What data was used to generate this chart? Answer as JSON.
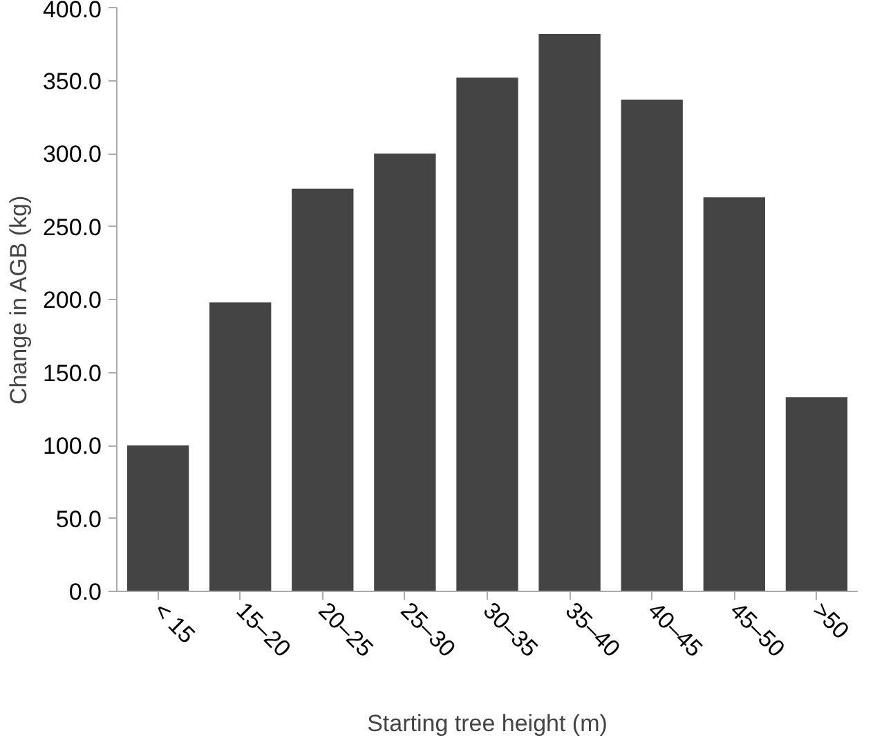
{
  "chart_data": {
    "type": "bar",
    "xlabel": "Starting tree height (m)",
    "ylabel": "Change in AGB (kg)",
    "categories": [
      "< 15",
      "15–20",
      "20–25",
      "25–30",
      "30–35",
      "35–40",
      "40–45",
      "45–50",
      ">50"
    ],
    "values": [
      100,
      198,
      276,
      300,
      352,
      382,
      337,
      270,
      133
    ],
    "color": "#444444",
    "ylim": [
      0,
      400
    ],
    "yticks": [
      {
        "value": 0,
        "label": "0.0"
      },
      {
        "value": 50,
        "label": "50.0"
      },
      {
        "value": 100,
        "label": "100.0"
      },
      {
        "value": 150,
        "label": "150.0"
      },
      {
        "value": 200,
        "label": "200.0"
      },
      {
        "value": 250,
        "label": "250.0"
      },
      {
        "value": 300,
        "label": "300.0"
      },
      {
        "value": 350,
        "label": "350.0"
      },
      {
        "value": 400,
        "label": "400.0"
      }
    ],
    "grid": false
  }
}
